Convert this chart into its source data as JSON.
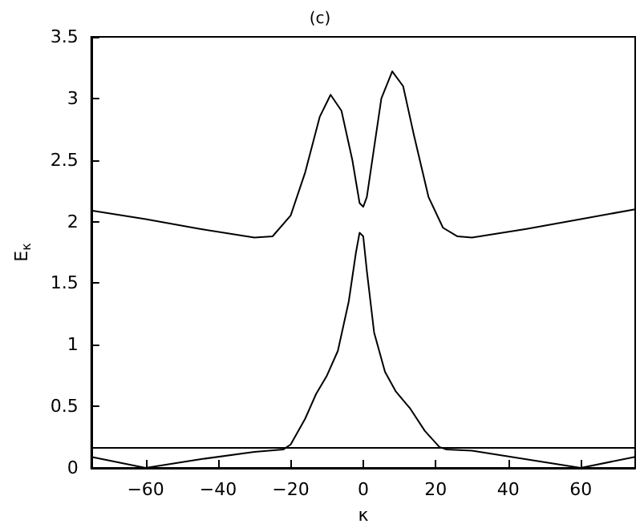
{
  "chart_data": {
    "type": "line",
    "title": "(c)",
    "xlabel": "κ",
    "ylabel": "E$_{κ}$",
    "xlim": [
      -75,
      75
    ],
    "xticks": [
      -60,
      -40,
      -20,
      0,
      20,
      40,
      60
    ],
    "ylim": [
      0,
      3.5
    ],
    "yticks": [
      0,
      0.5,
      1,
      1.5,
      2,
      2.5,
      3,
      3.5
    ],
    "grid": false,
    "marker": "none",
    "line_style": "solid",
    "series": [
      {
        "color": "#000000",
        "x": [
          -75,
          -60,
          -45,
          -30,
          -25,
          -20,
          -16,
          -12,
          -9,
          -6,
          -3,
          -1,
          0,
          1,
          3,
          5,
          8,
          11,
          14,
          18,
          22,
          26,
          30,
          45,
          60,
          75
        ],
        "values": [
          2.09,
          2.02,
          1.94,
          1.87,
          1.88,
          2.05,
          2.4,
          2.85,
          3.03,
          2.9,
          2.5,
          2.15,
          2.12,
          2.2,
          2.6,
          3.0,
          3.22,
          3.1,
          2.7,
          2.2,
          1.95,
          1.88,
          1.87,
          1.94,
          2.02,
          2.1
        ]
      },
      {
        "color": "#000000",
        "x": [
          -75,
          -60,
          -45,
          -30,
          -22,
          -20,
          -16,
          -13,
          -10,
          -7,
          -4,
          -2,
          -1,
          0,
          1,
          3,
          6,
          9,
          13,
          17,
          21,
          23,
          30,
          45,
          60,
          75
        ],
        "values": [
          0.09,
          0,
          0.07,
          0.13,
          0.15,
          0.19,
          0.4,
          0.6,
          0.75,
          0.95,
          1.35,
          1.75,
          1.91,
          1.88,
          1.6,
          1.1,
          0.78,
          0.62,
          0.48,
          0.3,
          0.17,
          0.15,
          0.14,
          0.07,
          0,
          0.09
        ]
      }
    ],
    "ref_lines": [
      {
        "axis": "y",
        "value": 0.17,
        "color": "#000000",
        "line_style": "solid"
      }
    ]
  }
}
